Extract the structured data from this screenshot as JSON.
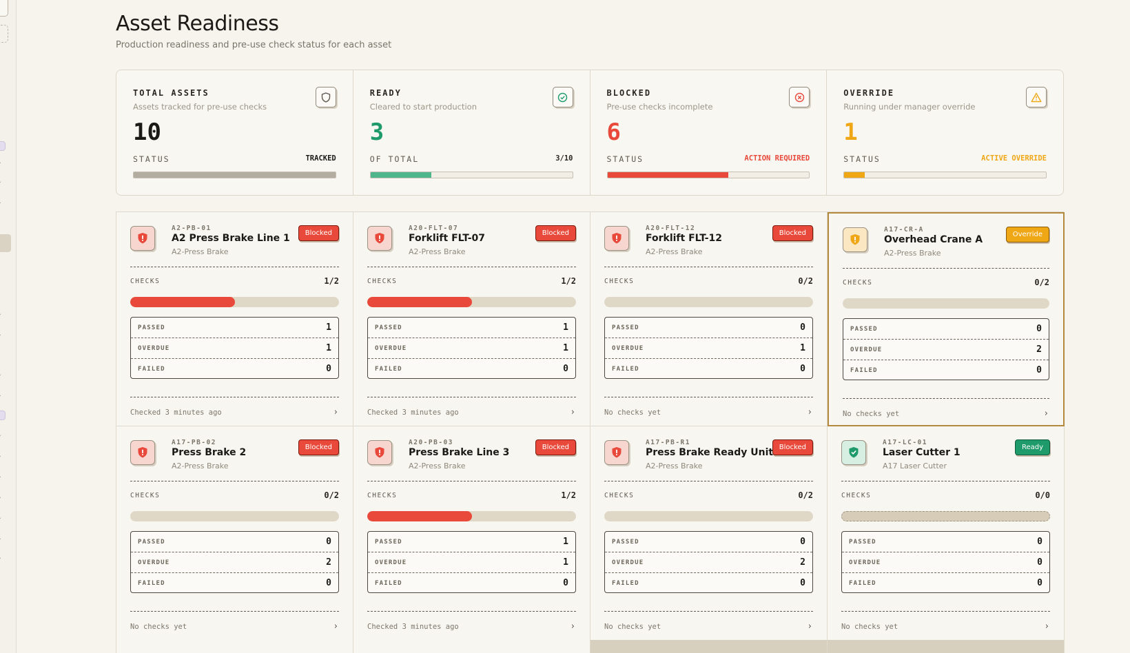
{
  "page": {
    "title": "Asset Readiness",
    "subtitle": "Production readiness and pre-use check status for each asset"
  },
  "colors": {
    "blocked": "#e8493a",
    "ready": "#1f9a6b",
    "override": "#f0a716",
    "neutral": "#b7b1a6"
  },
  "stats": [
    {
      "label": "TOTAL ASSETS",
      "description": "Assets tracked for pre-use checks",
      "value": "10",
      "foot_left": "STATUS",
      "foot_right": "TRACKED",
      "icon": "shield-icon",
      "progress_pct": 100
    },
    {
      "label": "READY",
      "description": "Cleared to start production",
      "value": "3",
      "foot_left": "OF TOTAL",
      "foot_right": "3/10",
      "icon": "check-circle-icon",
      "progress_pct": 30
    },
    {
      "label": "BLOCKED",
      "description": "Pre-use checks incomplete",
      "value": "6",
      "foot_left": "STATUS",
      "foot_right": "ACTION REQUIRED",
      "icon": "x-circle-icon",
      "progress_pct": 60
    },
    {
      "label": "OVERRIDE",
      "description": "Running under manager override",
      "value": "1",
      "foot_left": "STATUS",
      "foot_right": "ACTIVE OVERRIDE",
      "icon": "warning-triangle-icon",
      "progress_pct": 10
    }
  ],
  "labels": {
    "checks": "CHECKS",
    "passed": "PASSED",
    "overdue": "OVERDUE",
    "failed": "FAILED"
  },
  "assets": [
    {
      "code": "A2-PB-01",
      "name": "A2 Press Brake Line 1",
      "location": "A2-Press Brake",
      "status": "Blocked",
      "checks": "1/2",
      "progress_pct": 50,
      "passed": "1",
      "overdue": "1",
      "failed": "0",
      "last_checked": "Checked 3 minutes ago"
    },
    {
      "code": "A20-FLT-07",
      "name": "Forklift FLT-07",
      "location": "A2-Press Brake",
      "status": "Blocked",
      "checks": "1/2",
      "progress_pct": 50,
      "passed": "1",
      "overdue": "1",
      "failed": "0",
      "last_checked": "Checked 3 minutes ago"
    },
    {
      "code": "A20-FLT-12",
      "name": "Forklift FLT-12",
      "location": "A2-Press Brake",
      "status": "Blocked",
      "checks": "0/2",
      "progress_pct": 0,
      "passed": "0",
      "overdue": "1",
      "failed": "0",
      "last_checked": "No checks yet"
    },
    {
      "code": "A17-CR-A",
      "name": "Overhead Crane A",
      "location": "A2-Press Brake",
      "status": "Override",
      "checks": "0/2",
      "progress_pct": 0,
      "passed": "0",
      "overdue": "2",
      "failed": "0",
      "last_checked": "No checks yet"
    },
    {
      "code": "A17-PB-02",
      "name": "Press Brake 2",
      "location": "A2-Press Brake",
      "status": "Blocked",
      "checks": "0/2",
      "progress_pct": 0,
      "passed": "0",
      "overdue": "2",
      "failed": "0",
      "last_checked": "No checks yet"
    },
    {
      "code": "A20-PB-03",
      "name": "Press Brake Line 3",
      "location": "A2-Press Brake",
      "status": "Blocked",
      "checks": "1/2",
      "progress_pct": 50,
      "passed": "1",
      "overdue": "1",
      "failed": "0",
      "last_checked": "Checked 3 minutes ago"
    },
    {
      "code": "A17-PB-R1",
      "name": "Press Brake Ready Unit",
      "location": "A2-Press Brake",
      "status": "Blocked",
      "checks": "0/2",
      "progress_pct": 0,
      "passed": "0",
      "overdue": "2",
      "failed": "0",
      "last_checked": "No checks yet"
    },
    {
      "code": "A17-LC-01",
      "name": "Laser Cutter 1",
      "location": "A17 Laser Cutter",
      "status": "Ready",
      "checks": "0/0",
      "progress_pct": 0,
      "passed": "0",
      "overdue": "0",
      "failed": "0",
      "last_checked": "No checks yet"
    }
  ]
}
